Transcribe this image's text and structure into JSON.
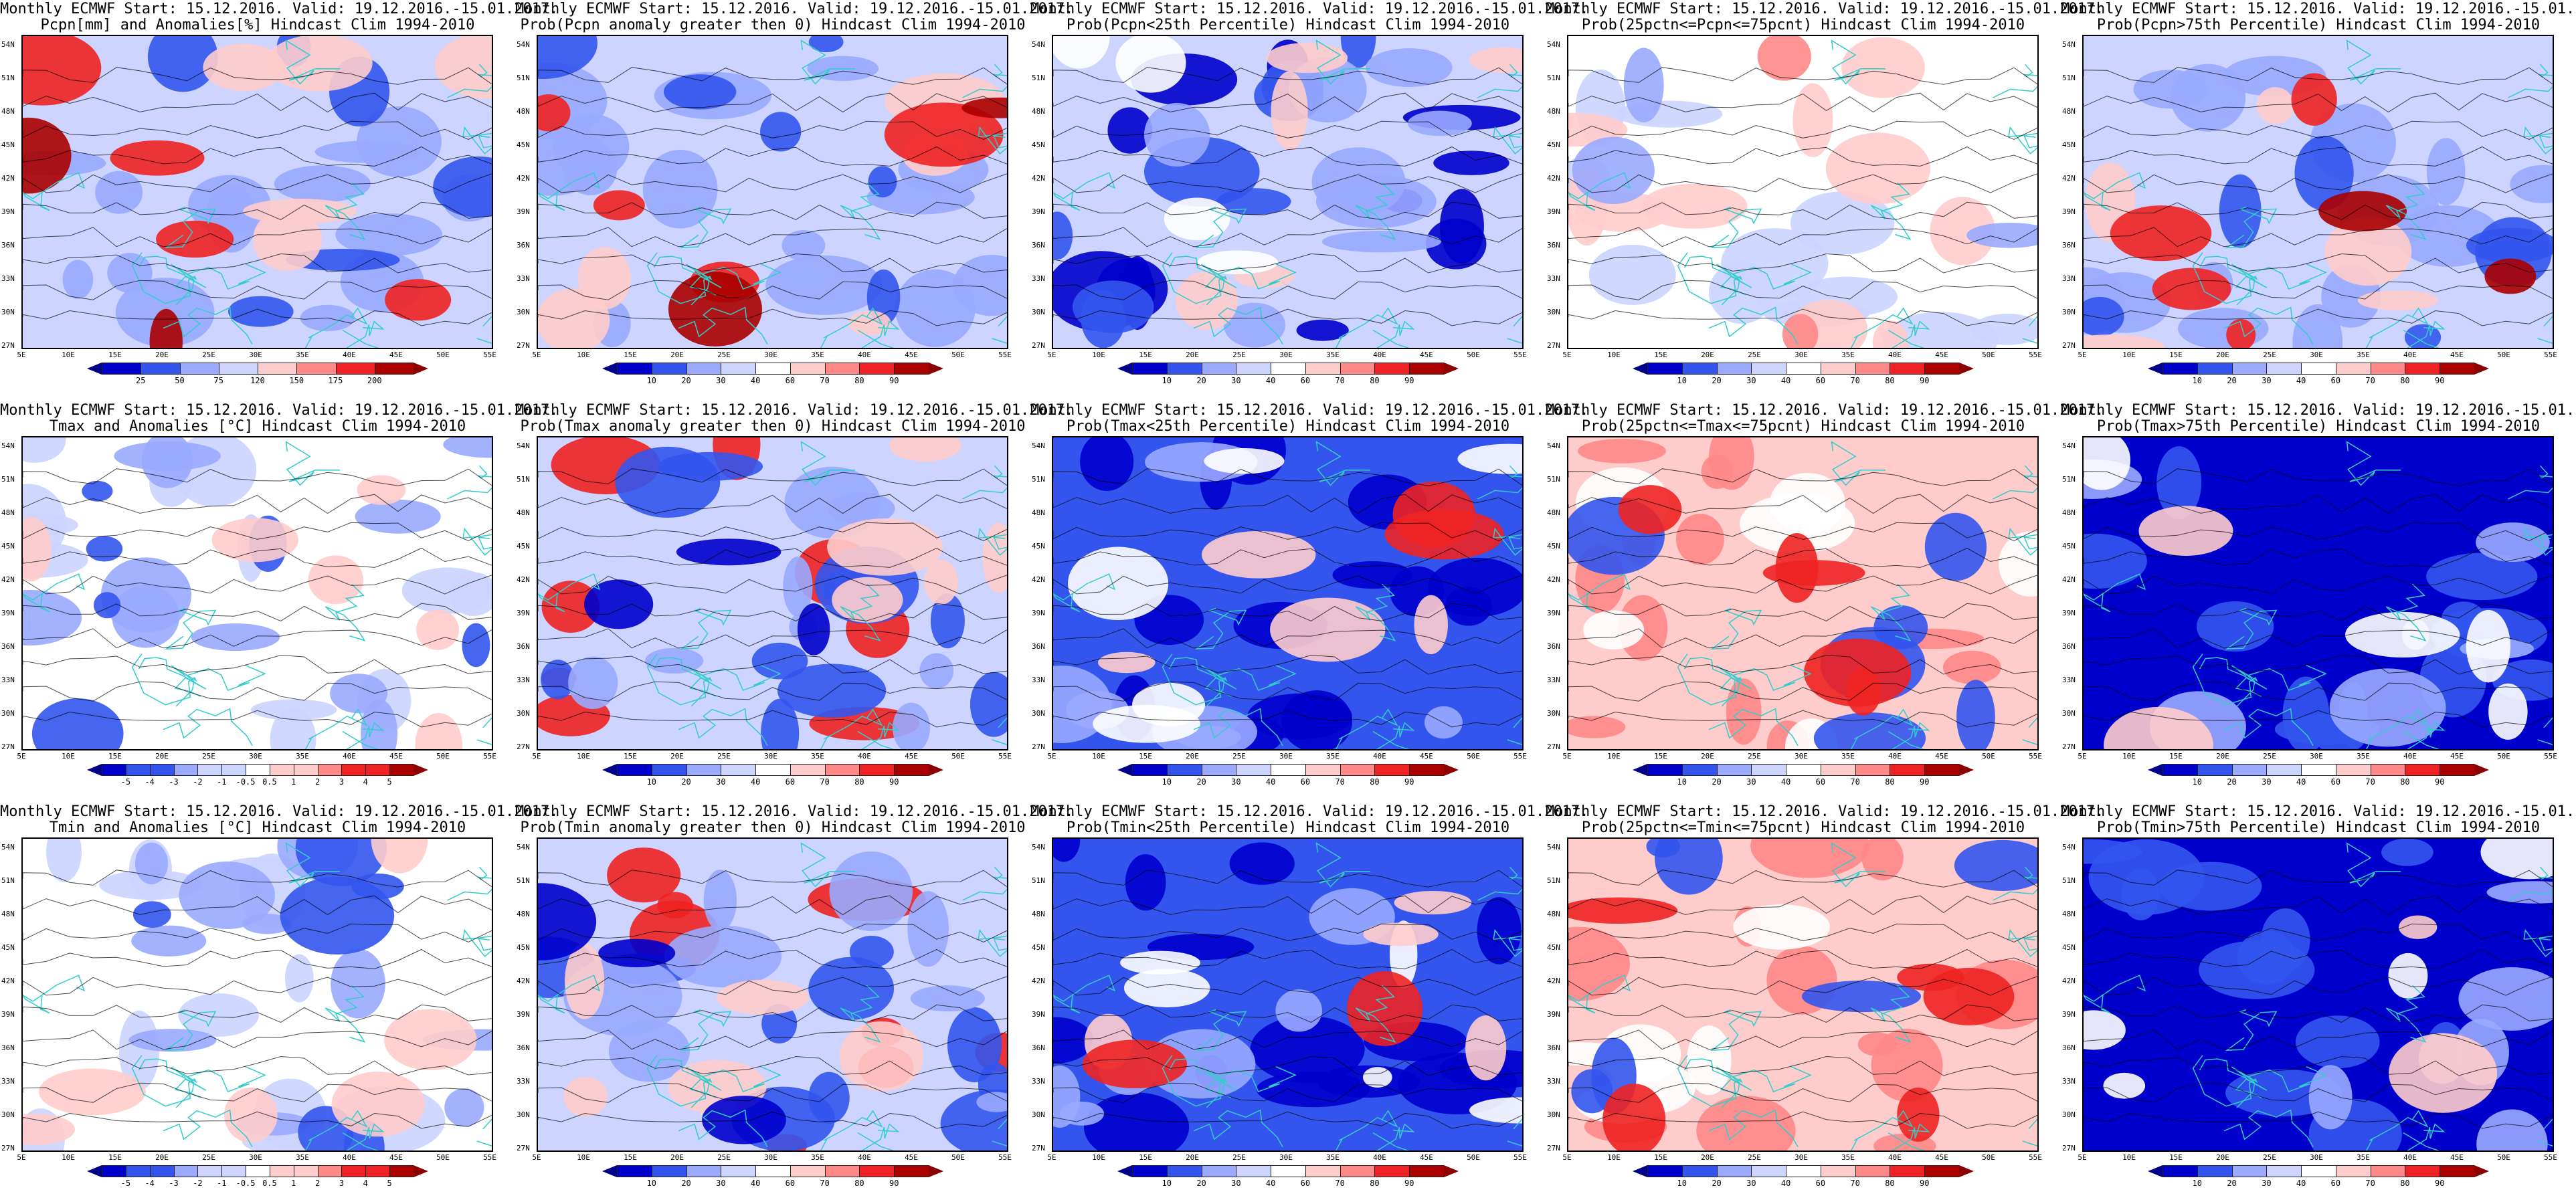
{
  "line1": "Monthly ECMWF Start: 15.12.2016. Valid: 19.12.2016.-15.01.2017.",
  "xticks": [
    "5E",
    "10E",
    "15E",
    "20E",
    "25E",
    "30E",
    "35E",
    "40E",
    "45E",
    "50E",
    "55E"
  ],
  "yticks": [
    "54N",
    "51N",
    "48N",
    "45N",
    "42N",
    "39N",
    "36N",
    "33N",
    "30N",
    "27N"
  ],
  "panels": [
    {
      "title": "Pcpn[mm] and Anomalies[%] Hindcast Clim 1994-2010",
      "scheme": "anom_pcpn",
      "cbar": [
        "25",
        "50",
        "75",
        "120",
        "150",
        "175",
        "200"
      ],
      "style": "pcpn"
    },
    {
      "title": "Prob(Pcpn anomaly greater then 0) Hindcast Clim 1994-2010",
      "scheme": "prob",
      "cbar": [
        "10",
        "20",
        "30",
        "40",
        "60",
        "70",
        "80",
        "90"
      ],
      "style": "pcpn"
    },
    {
      "title": "Prob(Pcpn<25th Percentile) Hindcast Clim 1994-2010",
      "scheme": "prob",
      "cbar": [
        "10",
        "20",
        "30",
        "40",
        "60",
        "70",
        "80",
        "90"
      ],
      "style": "lowp"
    },
    {
      "title": "Prob(25pctn<=Pcpn<=75pcnt) Hindcast Clim 1994-2010",
      "scheme": "prob",
      "cbar": [
        "10",
        "20",
        "30",
        "40",
        "60",
        "70",
        "80",
        "90"
      ],
      "style": "midp"
    },
    {
      "title": "Prob(Pcpn>75th Percentile) Hindcast Clim 1994-2010",
      "scheme": "prob",
      "cbar": [
        "10",
        "20",
        "30",
        "40",
        "60",
        "70",
        "80",
        "90"
      ],
      "style": "pcpn"
    },
    {
      "title": "Tmax and Anomalies [°C] Hindcast Clim 1994-2010",
      "scheme": "anom_t",
      "cbar": [
        "-5",
        "-4",
        "-3",
        "-2",
        "-1",
        "-0.5",
        "0.5",
        "1",
        "2",
        "3",
        "4",
        "5"
      ],
      "style": "cold"
    },
    {
      "title": "Prob(Tmax anomaly greater then 0) Hindcast Clim 1994-2010",
      "scheme": "prob",
      "cbar": [
        "10",
        "20",
        "30",
        "40",
        "60",
        "70",
        "80",
        "90"
      ],
      "style": "warmw"
    },
    {
      "title": "Prob(Tmax<25th Percentile) Hindcast Clim 1994-2010",
      "scheme": "prob",
      "cbar": [
        "10",
        "20",
        "30",
        "40",
        "60",
        "70",
        "80",
        "90"
      ],
      "style": "lowt"
    },
    {
      "title": "Prob(25pctn<=Tmax<=75pcnt) Hindcast Clim 1994-2010",
      "scheme": "prob",
      "cbar": [
        "10",
        "20",
        "30",
        "40",
        "60",
        "70",
        "80",
        "90"
      ],
      "style": "midt"
    },
    {
      "title": "Prob(Tmax>75th Percentile) Hindcast Clim 1994-2010",
      "scheme": "prob",
      "cbar": [
        "10",
        "20",
        "30",
        "40",
        "60",
        "70",
        "80",
        "90"
      ],
      "style": "blue"
    },
    {
      "title": "Tmin and Anomalies [°C] Hindcast Clim 1994-2010",
      "scheme": "anom_t",
      "cbar": [
        "-5",
        "-4",
        "-3",
        "-2",
        "-1",
        "-0.5",
        "0.5",
        "1",
        "2",
        "3",
        "4",
        "5"
      ],
      "style": "cold"
    },
    {
      "title": "Prob(Tmin anomaly greater then 0) Hindcast Clim 1994-2010",
      "scheme": "prob",
      "cbar": [
        "10",
        "20",
        "30",
        "40",
        "60",
        "70",
        "80",
        "90"
      ],
      "style": "warmw"
    },
    {
      "title": "Prob(Tmin<25th Percentile) Hindcast Clim 1994-2010",
      "scheme": "prob",
      "cbar": [
        "10",
        "20",
        "30",
        "40",
        "60",
        "70",
        "80",
        "90"
      ],
      "style": "lowt"
    },
    {
      "title": "Prob(25pctn<=Tmin<=75pcnt) Hindcast Clim 1994-2010",
      "scheme": "prob",
      "cbar": [
        "10",
        "20",
        "30",
        "40",
        "60",
        "70",
        "80",
        "90"
      ],
      "style": "midt"
    },
    {
      "title": "Prob(Tmin>75th Percentile) Hindcast Clim 1994-2010",
      "scheme": "prob",
      "cbar": [
        "10",
        "20",
        "30",
        "40",
        "60",
        "70",
        "80",
        "90"
      ],
      "style": "blue"
    }
  ],
  "colors": {
    "deep_blue": "#0000cc",
    "blue": "#3355ee",
    "light_blue": "#99aaff",
    "pale_blue": "#ccd4ff",
    "pale_red": "#ffcccc",
    "light_red": "#ff8888",
    "red": "#ee2222",
    "deep_red": "#aa0000",
    "coast": "#33cccc",
    "contour": "#000000"
  }
}
